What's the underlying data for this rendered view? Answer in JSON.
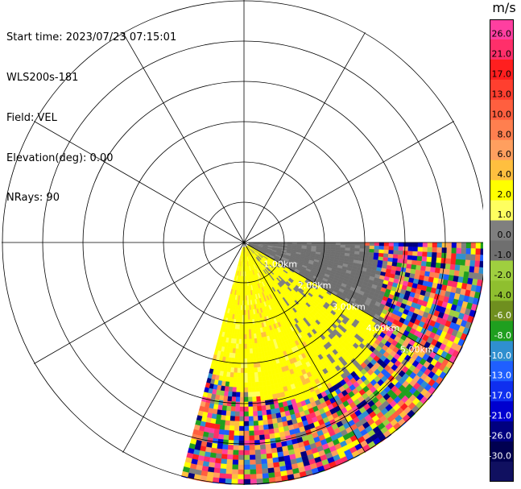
{
  "header": {
    "start_time": "Start time: 2023/07/23 07:15:01",
    "instrument": "WLS200s-181",
    "field": "Field: VEL",
    "elevation": "Elevation(deg): 0.00",
    "nrays": "NRays: 90"
  },
  "colorbar": {
    "units": "m/s",
    "ticks": [
      "26.0",
      "21.0",
      "17.0",
      "13.0",
      "10.0",
      "8.0",
      "6.0",
      "4.0",
      "2.0",
      "1.0",
      "0.0",
      "-1.0",
      "-2.0",
      "-4.0",
      "-6.0",
      "-8.0",
      "-10.0",
      "-13.0",
      "-17.0",
      "-21.0",
      "-26.0",
      "-30.0"
    ],
    "colors": [
      "#ff3fa0",
      "#ff2f6a",
      "#ff1f1f",
      "#ff3f2f",
      "#ff5f3f",
      "#ff7f4f",
      "#ff9f5f",
      "#ffbf3f",
      "#ffff00",
      "#ffff5f",
      "#7f7f7f",
      "#6f6f6f",
      "#9fcf3f",
      "#8fbf2f",
      "#6f8f1f",
      "#1f9f1f",
      "#2f8fcf",
      "#1f5fff",
      "#0f2fef",
      "#0000cf",
      "#00007f",
      "#000050",
      "#101060"
    ]
  },
  "chart_data": {
    "type": "heatmap",
    "projection": "polar",
    "field": "VEL",
    "units": "m/s",
    "azimuth_range_deg": [
      90,
      195
    ],
    "range_rings_km": [
      "1.00km",
      "2.00km",
      "3.00km",
      "4.00km",
      "5.00km"
    ],
    "color_range": [
      -30,
      30
    ],
    "grid": true,
    "legend": "right"
  }
}
